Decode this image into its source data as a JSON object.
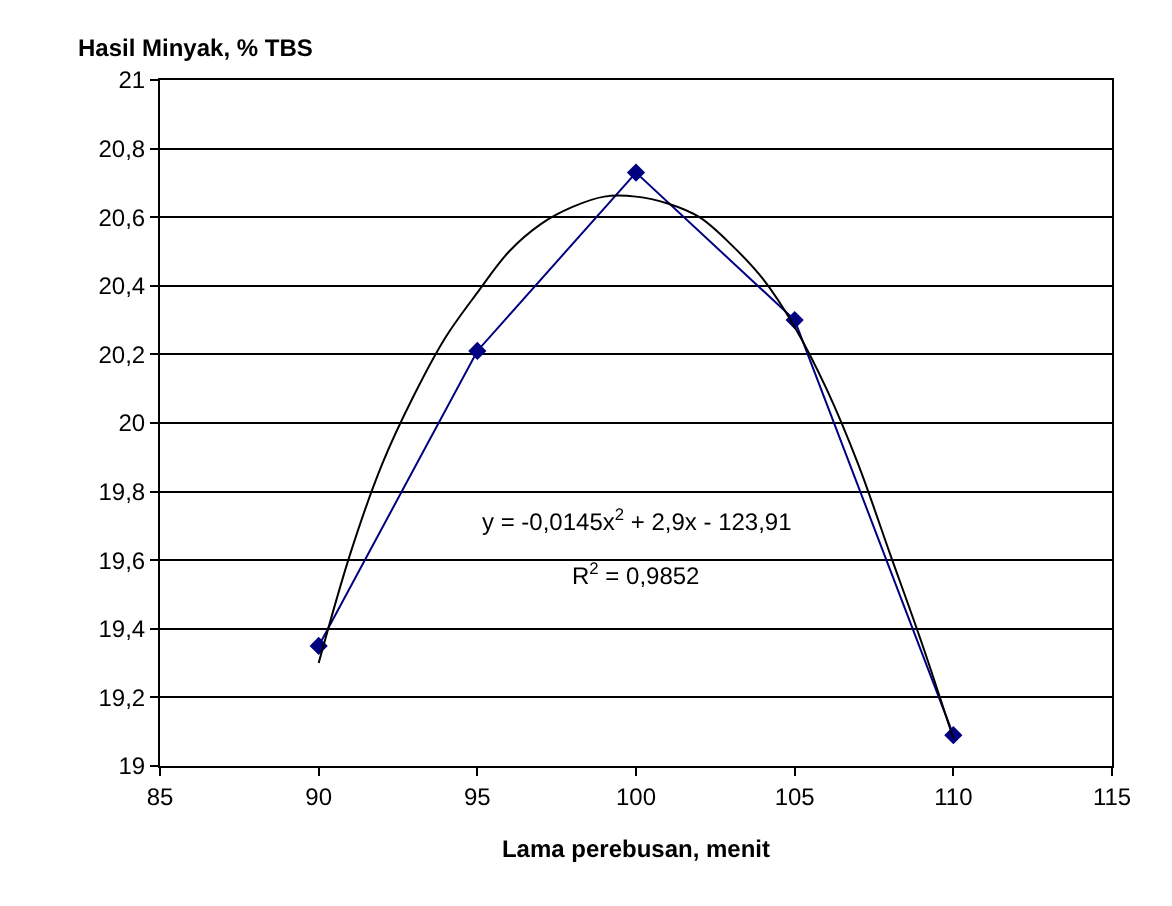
{
  "chart_data": {
    "type": "line",
    "xlabel": "Lama perebusan, menit",
    "ylabel": "Hasil Minyak, % TBS",
    "x": [
      90,
      95,
      100,
      105,
      110
    ],
    "series": [
      {
        "color": "#000080",
        "values": [
          19.35,
          20.21,
          20.73,
          20.3,
          19.09
        ],
        "marker": "diamond"
      },
      {
        "type": "line",
        "color": "#000000",
        "marker": "none",
        "x": [
          90,
          91,
          92,
          93,
          94,
          95,
          96,
          97,
          98,
          99,
          100,
          101,
          102,
          103,
          104,
          105,
          106,
          107,
          108,
          109,
          110
        ],
        "values": [
          19.3,
          19.62,
          19.88,
          20.08,
          20.25,
          20.38,
          20.5,
          20.58,
          20.63,
          20.66,
          20.66,
          20.64,
          20.6,
          20.52,
          20.42,
          20.28,
          20.1,
          19.88,
          19.62,
          19.36,
          19.08
        ]
      }
    ],
    "annotations": [
      "y = -0,0145x$^{2}$ + 2,9x - 123,91",
      "R$^{2}$ = 0,9852"
    ],
    "xlim": [
      85,
      115
    ],
    "xticks": [
      {
        "value": 85,
        "label": "85"
      },
      {
        "value": 90,
        "label": "90"
      },
      {
        "value": 95,
        "label": "95"
      },
      {
        "value": 100,
        "label": "100"
      },
      {
        "value": 105,
        "label": "105"
      },
      {
        "value": 110,
        "label": "110"
      },
      {
        "value": 115,
        "label": "115"
      }
    ],
    "ylim": [
      19,
      21
    ],
    "yticks": [
      {
        "value": 19,
        "label": "19"
      },
      {
        "value": 19.2,
        "label": "19,2"
      },
      {
        "value": 19.4,
        "label": "19,4"
      },
      {
        "value": 19.6,
        "label": "19,6"
      },
      {
        "value": 19.8,
        "label": "19,8"
      },
      {
        "value": 20,
        "label": "20"
      },
      {
        "value": 20.2,
        "label": "20,2"
      },
      {
        "value": 20.4,
        "label": "20,4"
      },
      {
        "value": 20.6,
        "label": "20,6"
      },
      {
        "value": 20.8,
        "label": "20,8"
      },
      {
        "value": 21,
        "label": "21"
      }
    ],
    "grid": "y",
    "legend": false
  }
}
